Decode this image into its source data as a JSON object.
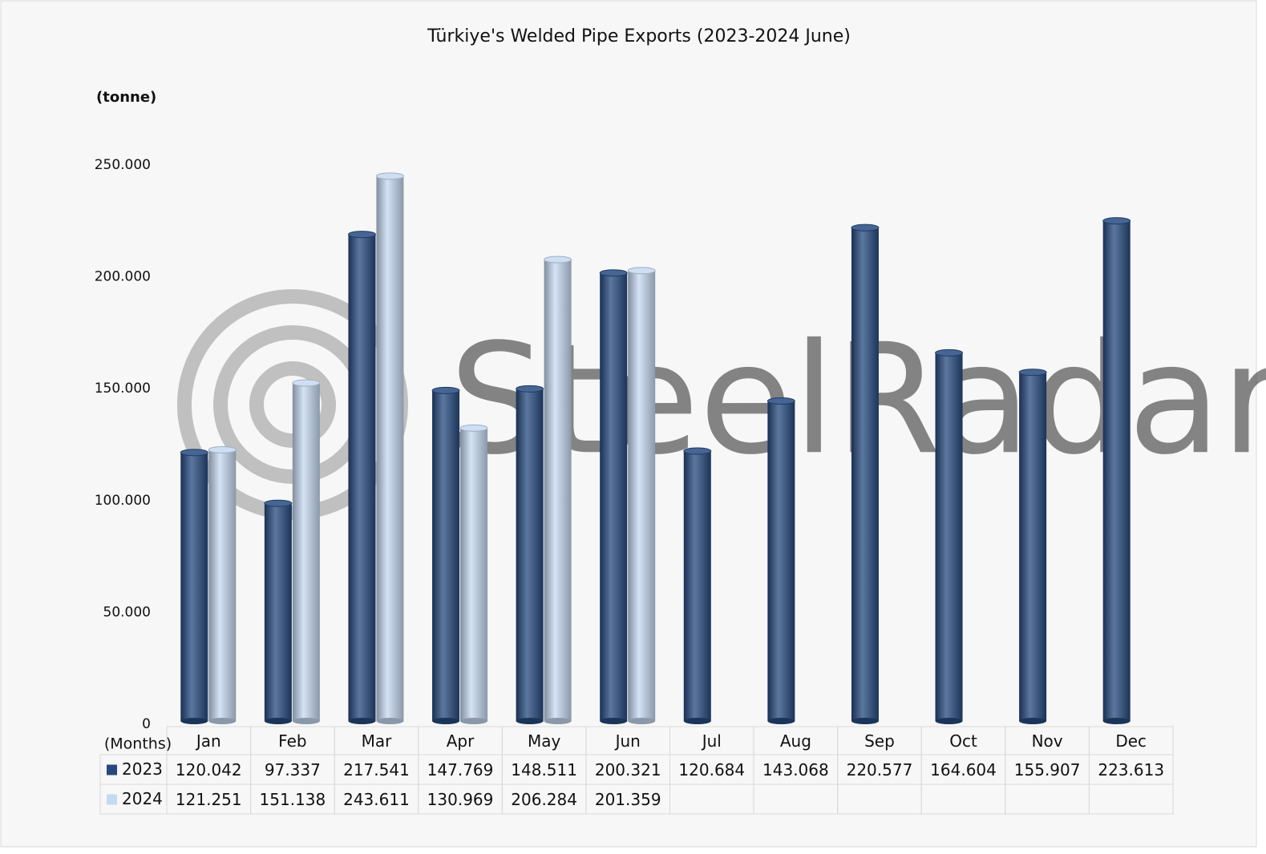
{
  "chart_data": {
    "type": "bar",
    "title": "Türkiye's Welded Pipe Exports (2023-2024 June)",
    "y_label": "(tonne)",
    "x_label": "(Months)",
    "watermark": "SteelRadar",
    "categories": [
      "Jan",
      "Feb",
      "Mar",
      "Apr",
      "May",
      "Jun",
      "Jul",
      "Aug",
      "Sep",
      "Oct",
      "Nov",
      "Dec"
    ],
    "series": [
      {
        "name": "2023",
        "color": "#264a7f",
        "values": [
          120042,
          97337,
          217541,
          147769,
          148511,
          200321,
          120684,
          143068,
          220577,
          164604,
          155907,
          223613
        ],
        "value_labels": [
          "120.042",
          "97.337",
          "217.541",
          "147.769",
          "148.511",
          "200.321",
          "120.684",
          "143.068",
          "220.577",
          "164.604",
          "155.907",
          "223.613"
        ]
      },
      {
        "name": "2024",
        "color": "#c5d9f1",
        "values": [
          121251,
          151138,
          243611,
          130969,
          206284,
          201359,
          null,
          null,
          null,
          null,
          null,
          null
        ],
        "value_labels": [
          "121.251",
          "151.138",
          "243.611",
          "130.969",
          "206.284",
          "201.359",
          null,
          null,
          null,
          null,
          null,
          null
        ]
      }
    ],
    "ylim": [
      0,
      250000
    ],
    "yticks": [
      0,
      {
        "value": 50000,
        "label": "50.000"
      },
      {
        "value": 100000,
        "label": "100.000"
      },
      {
        "value": 150000,
        "label": "150.000"
      },
      {
        "value": 200000,
        "label": "200.000"
      },
      {
        "value": 250000,
        "label": "250.000"
      }
    ],
    "grid": false
  }
}
